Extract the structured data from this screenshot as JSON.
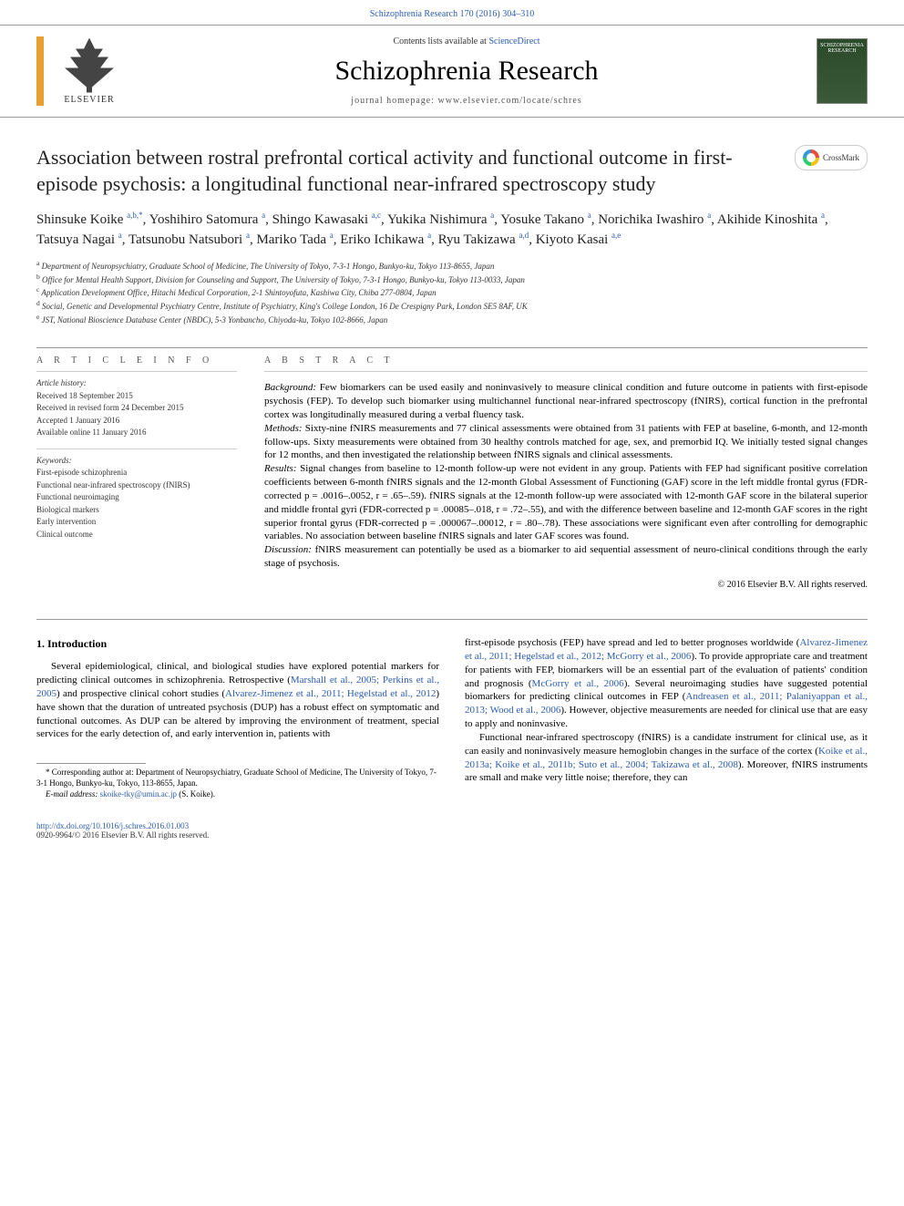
{
  "journal": {
    "top_citation": "Schizophrenia Research 170 (2016) 304–310",
    "contents_line_prefix": "Contents lists available at ",
    "contents_line_link": "ScienceDirect",
    "title": "Schizophrenia Research",
    "homepage_prefix": "journal homepage: ",
    "homepage_url": "www.elsevier.com/locate/schres",
    "publisher": "ELSEVIER",
    "cover_text": "SCHIZOPHRENIA RESEARCH"
  },
  "crossmark_label": "CrossMark",
  "article": {
    "title": "Association between rostral prefrontal cortical activity and functional outcome in first-episode psychosis: a longitudinal functional near-infrared spectroscopy study",
    "authors_html": "Shinsuke Koike <sup>a,b,*</sup>, Yoshihiro Satomura <sup>a</sup>, Shingo Kawasaki <sup>a,c</sup>, Yukika Nishimura <sup>a</sup>, Yosuke Takano <sup>a</sup>, Norichika Iwashiro <sup>a</sup>, Akihide Kinoshita <sup>a</sup>, Tatsuya Nagai <sup>a</sup>, Tatsunobu Natsubori <sup>a</sup>, Mariko Tada <sup>a</sup>, Eriko Ichikawa <sup>a</sup>, Ryu Takizawa <sup>a,d</sup>, Kiyoto Kasai <sup>a,e</sup>",
    "affiliations": [
      {
        "sup": "a",
        "text": "Department of Neuropsychiatry, Graduate School of Medicine, The University of Tokyo, 7-3-1 Hongo, Bunkyo-ku, Tokyo 113-8655, Japan"
      },
      {
        "sup": "b",
        "text": "Office for Mental Health Support, Division for Counseling and Support, The University of Tokyo, 7-3-1 Hongo, Bunkyo-ku, Tokyo 113-0033, Japan"
      },
      {
        "sup": "c",
        "text": "Application Development Office, Hitachi Medical Corporation, 2-1 Shintoyofuta, Kashiwa City, Chiba 277-0804, Japan"
      },
      {
        "sup": "d",
        "text": "Social, Genetic and Developmental Psychiatry Centre, Institute of Psychiatry, King's College London, 16 De Crespigny Park, London SE5 8AF, UK"
      },
      {
        "sup": "e",
        "text": "JST, National Bioscience Database Center (NBDC), 5-3 Yonbancho, Chiyoda-ku, Tokyo 102-8666, Japan"
      }
    ]
  },
  "article_info": {
    "heading": "A R T I C L E   I N F O",
    "history_label": "Article history:",
    "history": [
      "Received 18 September 2015",
      "Received in revised form 24 December 2015",
      "Accepted 1 January 2016",
      "Available online 11 January 2016"
    ],
    "keywords_label": "Keywords:",
    "keywords": [
      "First-episode schizophrenia",
      "Functional near-infrared spectroscopy (fNIRS)",
      "Functional neuroimaging",
      "Biological markers",
      "Early intervention",
      "Clinical outcome"
    ]
  },
  "abstract": {
    "heading": "A B S T R A C T",
    "sections": [
      {
        "label": "Background:",
        "text": " Few biomarkers can be used easily and noninvasively to measure clinical condition and future outcome in patients with first-episode psychosis (FEP). To develop such biomarker using multichannel functional near-infrared spectroscopy (fNIRS), cortical function in the prefrontal cortex was longitudinally measured during a verbal fluency task."
      },
      {
        "label": "Methods:",
        "text": " Sixty-nine fNIRS measurements and 77 clinical assessments were obtained from 31 patients with FEP at baseline, 6-month, and 12-month follow-ups. Sixty measurements were obtained from 30 healthy controls matched for age, sex, and premorbid IQ. We initially tested signal changes for 12 months, and then investigated the relationship between fNIRS signals and clinical assessments."
      },
      {
        "label": "Results:",
        "text": " Signal changes from baseline to 12-month follow-up were not evident in any group. Patients with FEP had significant positive correlation coefficients between 6-month fNIRS signals and the 12-month Global Assessment of Functioning (GAF) score in the left middle frontal gyrus (FDR-corrected p = .0016–.0052, r = .65–.59). fNIRS signals at the 12-month follow-up were associated with 12-month GAF score in the bilateral superior and middle frontal gyri (FDR-corrected p = .00085–.018, r = .72–.55), and with the difference between baseline and 12-month GAF scores in the right superior frontal gyrus (FDR-corrected p = .000067–.00012, r = .80–.78). These associations were significant even after controlling for demographic variables. No association between baseline fNIRS signals and later GAF scores was found."
      },
      {
        "label": "Discussion:",
        "text": " fNIRS measurement can potentially be used as a biomarker to aid sequential assessment of neuro-clinical conditions through the early stage of psychosis."
      }
    ],
    "copyright": "© 2016 Elsevier B.V. All rights reserved."
  },
  "intro": {
    "heading": "1. Introduction",
    "col1_para1_parts": [
      {
        "type": "text",
        "text": "Several epidemiological, clinical, and biological studies have explored potential markers for predicting clinical outcomes in schizophrenia. Retrospective ("
      },
      {
        "type": "cite",
        "text": "Marshall et al., 2005; Perkins et al., 2005"
      },
      {
        "type": "text",
        "text": ") and prospective clinical cohort studies ("
      },
      {
        "type": "cite",
        "text": "Alvarez-Jimenez et al., 2011; Hegelstad et al., 2012"
      },
      {
        "type": "text",
        "text": ") have shown that the duration of untreated psychosis (DUP) has a robust effect on symptomatic and functional outcomes. As DUP can be altered by improving the environment of treatment, special services for the early detection of, and early intervention in, patients with"
      }
    ],
    "col2_para1_parts": [
      {
        "type": "text",
        "text": "first-episode psychosis (FEP) have spread and led to better prognoses worldwide ("
      },
      {
        "type": "cite",
        "text": "Alvarez-Jimenez et al., 2011; Hegelstad et al., 2012; McGorry et al., 2006"
      },
      {
        "type": "text",
        "text": "). To provide appropriate care and treatment for patients with FEP, biomarkers will be an essential part of the evaluation of patients' condition and prognosis ("
      },
      {
        "type": "cite",
        "text": "McGorry et al., 2006"
      },
      {
        "type": "text",
        "text": "). Several neuroimaging studies have suggested potential biomarkers for predicting clinical outcomes in FEP ("
      },
      {
        "type": "cite",
        "text": "Andreasen et al., 2011; Palaniyappan et al., 2013; Wood et al., 2006"
      },
      {
        "type": "text",
        "text": "). However, objective measurements are needed for clinical use that are easy to apply and noninvasive."
      }
    ],
    "col2_para2_parts": [
      {
        "type": "text",
        "text": "Functional near-infrared spectroscopy (fNIRS) is a candidate instrument for clinical use, as it can easily and noninvasively measure hemoglobin changes in the surface of the cortex ("
      },
      {
        "type": "cite",
        "text": "Koike et al., 2013a; Koike et al., 2011b; Suto et al., 2004; Takizawa et al., 2008"
      },
      {
        "type": "text",
        "text": "). Moreover, fNIRS instruments are small and make very little noise; therefore, they can"
      }
    ]
  },
  "corresponding": {
    "star": "*",
    "text": "Corresponding author at: Department of Neuropsychiatry, Graduate School of Medicine, The University of Tokyo, 7-3-1 Hongo, Bunkyo-ku, Tokyo, 113-8655, Japan.",
    "email_label": "E-mail address:",
    "email": "skoike-tky@umin.ac.jp",
    "email_name": "(S. Koike)."
  },
  "footer": {
    "doi": "http://dx.doi.org/10.1016/j.schres.2016.01.003",
    "issn_line": "0920-9964/© 2016 Elsevier B.V. All rights reserved."
  },
  "colors": {
    "link": "#2a5db0",
    "orange_bar": "#e8a030",
    "text": "#000000"
  }
}
